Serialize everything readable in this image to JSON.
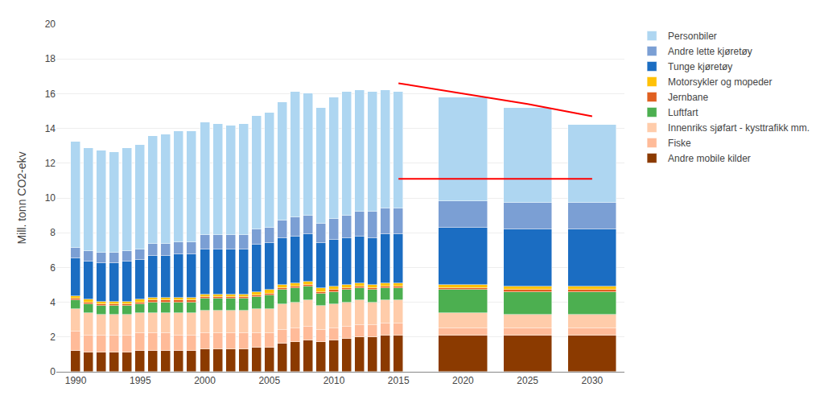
{
  "chart_data": {
    "type": "bar",
    "stacked": true,
    "ylabel": "Mill. tonn CO2-ekv",
    "x": [
      1990,
      1991,
      1992,
      1993,
      1994,
      1995,
      1996,
      1997,
      1998,
      1999,
      2000,
      2001,
      2002,
      2003,
      2004,
      2005,
      2006,
      2007,
      2008,
      2009,
      2010,
      2011,
      2012,
      2013,
      2014,
      2015,
      2020,
      2025,
      2030
    ],
    "series": [
      {
        "name": "Andre mobile kilder",
        "color": "#8B3A00",
        "values": [
          1.2,
          1.1,
          1.1,
          1.1,
          1.1,
          1.2,
          1.2,
          1.2,
          1.2,
          1.2,
          1.3,
          1.3,
          1.3,
          1.3,
          1.4,
          1.4,
          1.6,
          1.7,
          1.8,
          1.7,
          1.8,
          1.9,
          2.0,
          2.0,
          2.1,
          2.1,
          2.1,
          2.1,
          2.1
        ]
      },
      {
        "name": "Fiske",
        "color": "#FFBB99",
        "values": [
          1.1,
          1.0,
          1.0,
          1.0,
          1.0,
          1.0,
          1.0,
          1.0,
          0.9,
          0.9,
          0.9,
          0.9,
          0.9,
          0.9,
          0.8,
          0.8,
          0.8,
          0.8,
          0.8,
          0.7,
          0.7,
          0.7,
          0.7,
          0.7,
          0.7,
          0.7,
          0.4,
          0.4,
          0.4
        ]
      },
      {
        "name": "Innenriks sjøfart - kysttrafikk mm.",
        "color": "#FFCCAA",
        "values": [
          1.3,
          1.3,
          1.2,
          1.2,
          1.2,
          1.2,
          1.2,
          1.2,
          1.3,
          1.3,
          1.3,
          1.3,
          1.3,
          1.3,
          1.4,
          1.4,
          1.5,
          1.5,
          1.5,
          1.4,
          1.4,
          1.4,
          1.4,
          1.3,
          1.3,
          1.3,
          0.9,
          0.8,
          0.8
        ]
      },
      {
        "name": "Luftfart",
        "color": "#4CAF50",
        "values": [
          0.5,
          0.5,
          0.5,
          0.5,
          0.5,
          0.5,
          0.6,
          0.6,
          0.6,
          0.6,
          0.7,
          0.7,
          0.7,
          0.7,
          0.7,
          0.8,
          0.8,
          0.8,
          0.8,
          0.7,
          0.7,
          0.7,
          0.7,
          0.7,
          0.7,
          0.7,
          1.3,
          1.3,
          1.3
        ]
      },
      {
        "name": "Jernbane",
        "color": "#E06020",
        "values": [
          0.1,
          0.1,
          0.1,
          0.1,
          0.1,
          0.1,
          0.1,
          0.1,
          0.1,
          0.1,
          0.1,
          0.1,
          0.1,
          0.1,
          0.1,
          0.1,
          0.1,
          0.1,
          0.1,
          0.1,
          0.1,
          0.1,
          0.1,
          0.1,
          0.1,
          0.1,
          0.1,
          0.1,
          0.1
        ]
      },
      {
        "name": "Motorsykler og mopeder",
        "color": "#FFC107",
        "values": [
          0.15,
          0.15,
          0.15,
          0.15,
          0.15,
          0.15,
          0.15,
          0.15,
          0.15,
          0.15,
          0.15,
          0.15,
          0.15,
          0.15,
          0.2,
          0.2,
          0.2,
          0.2,
          0.2,
          0.2,
          0.2,
          0.2,
          0.2,
          0.2,
          0.2,
          0.2,
          0.2,
          0.2,
          0.2
        ]
      },
      {
        "name": "Tunge kjøretøy",
        "color": "#1B6DC2",
        "values": [
          2.2,
          2.2,
          2.2,
          2.2,
          2.3,
          2.3,
          2.4,
          2.4,
          2.5,
          2.5,
          2.6,
          2.6,
          2.6,
          2.6,
          2.7,
          2.7,
          2.7,
          2.7,
          2.7,
          2.6,
          2.7,
          2.7,
          2.7,
          2.7,
          2.8,
          2.8,
          3.3,
          3.3,
          3.3
        ]
      },
      {
        "name": "Andre lette kjøretøy",
        "color": "#7B9FD4",
        "values": [
          0.6,
          0.6,
          0.6,
          0.6,
          0.6,
          0.6,
          0.7,
          0.7,
          0.7,
          0.7,
          0.8,
          0.8,
          0.8,
          0.8,
          0.9,
          0.9,
          1.0,
          1.1,
          1.1,
          1.1,
          1.2,
          1.3,
          1.4,
          1.5,
          1.5,
          1.5,
          1.5,
          1.5,
          1.5
        ]
      },
      {
        "name": "Personbiler",
        "color": "#AED6F1",
        "values": [
          6.1,
          5.9,
          5.9,
          5.8,
          5.9,
          6.0,
          6.2,
          6.3,
          6.4,
          6.4,
          6.5,
          6.4,
          6.3,
          6.4,
          6.5,
          6.6,
          6.8,
          7.2,
          7.0,
          6.7,
          7.0,
          7.1,
          7.0,
          6.9,
          6.8,
          6.7,
          6.0,
          5.5,
          4.5
        ]
      },
      {
        "type": "line",
        "color": "red",
        "x": [
          2015,
          2020,
          2025,
          2030
        ],
        "values": [
          16.6,
          16.0,
          15.4,
          14.7
        ]
      },
      {
        "type": "line",
        "color": "red",
        "x": [
          2015,
          2020,
          2025,
          2030
        ],
        "values": [
          11.1,
          11.1,
          11.1,
          11.1
        ]
      }
    ],
    "xlim": [
      1988.5,
      2032.5
    ],
    "xticks": [
      1990,
      1995,
      2000,
      2005,
      2010,
      2015,
      2020,
      2025,
      2030
    ],
    "ylim": [
      0,
      20
    ],
    "yticks": [
      0,
      2,
      4,
      6,
      8,
      10,
      12,
      14,
      16,
      18,
      20
    ],
    "grid": true,
    "legend": "right"
  }
}
